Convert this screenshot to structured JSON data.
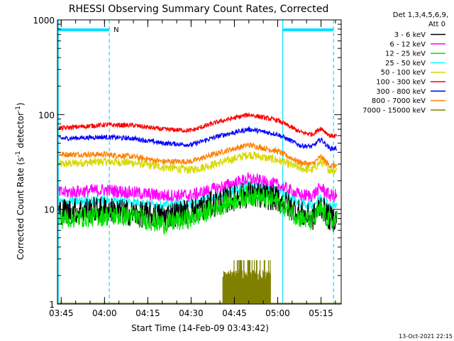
{
  "chart_data": {
    "type": "line",
    "title": "RHESSI Observing Summary Count Rates, Corrected",
    "xlabel": "Start Time (14-Feb-09 03:43:42)",
    "ylabel_main": "Corrected Count Rate (s",
    "ylabel_sup1": "-1",
    "ylabel_mid": " detector",
    "ylabel_sup2": "-1",
    "ylabel_end": ")",
    "yscale": "log",
    "ylim": [
      1,
      1000
    ],
    "xlim": [
      "03:43:42",
      "05:22:00"
    ],
    "y_ticks": [
      1,
      10,
      100,
      1000
    ],
    "y_tick_labels": [
      "1",
      "10",
      "100",
      "1000"
    ],
    "x_ticks": [
      "03:45",
      "04:00",
      "04:15",
      "04:30",
      "04:45",
      "05:00",
      "05:15"
    ],
    "legend_position": "right",
    "legend_header": [
      "Det 1,3,4,5,6,9,",
      "Att 0"
    ],
    "footer_date": "13-Oct-2021 22:15",
    "night_marker_label": "N",
    "night_intervals": [
      [
        "03:44:00",
        "04:01:40"
      ],
      [
        "05:01:45",
        "05:19:20"
      ]
    ],
    "series": [
      {
        "name": "3 - 6 keV",
        "color": "#000000",
        "points": [
          [
            "03:45",
            9.5
          ],
          [
            "04:00",
            10
          ],
          [
            "04:10",
            9
          ],
          [
            "04:20",
            8.5
          ],
          [
            "04:30",
            9.5
          ],
          [
            "04:40",
            12
          ],
          [
            "04:50",
            14.5
          ],
          [
            "05:00",
            13
          ],
          [
            "05:08",
            9
          ],
          [
            "05:12",
            8
          ],
          [
            "05:15",
            11
          ],
          [
            "05:18",
            8
          ],
          [
            "05:21",
            8
          ]
        ]
      },
      {
        "name": "6 - 12 keV",
        "color": "#ff00ff",
        "points": [
          [
            "03:45",
            15
          ],
          [
            "04:00",
            16
          ],
          [
            "04:10",
            15
          ],
          [
            "04:20",
            14
          ],
          [
            "04:30",
            14
          ],
          [
            "04:40",
            17
          ],
          [
            "04:50",
            21
          ],
          [
            "05:00",
            18
          ],
          [
            "05:08",
            14
          ],
          [
            "05:12",
            14
          ],
          [
            "05:15",
            17
          ],
          [
            "05:18",
            14
          ],
          [
            "05:21",
            14
          ]
        ]
      },
      {
        "name": "12 - 25 keV",
        "color": "#00e000",
        "points": [
          [
            "03:45",
            8
          ],
          [
            "04:00",
            8.5
          ],
          [
            "04:10",
            8.5
          ],
          [
            "04:20",
            7
          ],
          [
            "04:30",
            8
          ],
          [
            "04:40",
            11
          ],
          [
            "04:50",
            14
          ],
          [
            "05:00",
            12
          ],
          [
            "05:08",
            8
          ],
          [
            "05:12",
            7.5
          ],
          [
            "05:15",
            10
          ],
          [
            "05:18",
            7.5
          ],
          [
            "05:21",
            7.5
          ]
        ]
      },
      {
        "name": "25 - 50 keV",
        "color": "#00ffff",
        "points": [
          [
            "03:45",
            12
          ],
          [
            "04:00",
            12.5
          ],
          [
            "04:10",
            12
          ],
          [
            "04:20",
            11
          ],
          [
            "04:30",
            11.5
          ],
          [
            "04:40",
            14
          ],
          [
            "04:50",
            18
          ],
          [
            "05:00",
            15.5
          ],
          [
            "05:08",
            11.5
          ],
          [
            "05:12",
            11
          ],
          [
            "05:15",
            13.5
          ],
          [
            "05:18",
            11
          ],
          [
            "05:21",
            11
          ]
        ]
      },
      {
        "name": "50 - 100 keV",
        "color": "#d8d800",
        "points": [
          [
            "03:45",
            30
          ],
          [
            "04:00",
            32
          ],
          [
            "04:10",
            31
          ],
          [
            "04:20",
            28
          ],
          [
            "04:30",
            26
          ],
          [
            "04:40",
            31
          ],
          [
            "04:50",
            38
          ],
          [
            "05:00",
            33
          ],
          [
            "05:08",
            27
          ],
          [
            "05:12",
            26
          ],
          [
            "05:15",
            32
          ],
          [
            "05:18",
            26
          ],
          [
            "05:21",
            26
          ]
        ]
      },
      {
        "name": "100 - 300 keV",
        "color": "#ff0000",
        "points": [
          [
            "03:45",
            72
          ],
          [
            "04:00",
            78
          ],
          [
            "04:10",
            77
          ],
          [
            "04:20",
            70
          ],
          [
            "04:30",
            68
          ],
          [
            "04:40",
            85
          ],
          [
            "04:50",
            100
          ],
          [
            "05:00",
            87
          ],
          [
            "05:08",
            65
          ],
          [
            "05:12",
            62
          ],
          [
            "05:15",
            72
          ],
          [
            "05:18",
            60
          ],
          [
            "05:21",
            59
          ]
        ]
      },
      {
        "name": "300 - 800 keV",
        "color": "#0000ff",
        "points": [
          [
            "03:45",
            56
          ],
          [
            "04:00",
            58
          ],
          [
            "04:10",
            56
          ],
          [
            "04:20",
            50
          ],
          [
            "04:30",
            48
          ],
          [
            "04:40",
            60
          ],
          [
            "04:50",
            70
          ],
          [
            "05:00",
            62
          ],
          [
            "05:08",
            47
          ],
          [
            "05:12",
            46
          ],
          [
            "05:15",
            55
          ],
          [
            "05:18",
            44
          ],
          [
            "05:21",
            44
          ]
        ]
      },
      {
        "name": "800 - 7000 keV",
        "color": "#ff8000",
        "points": [
          [
            "03:45",
            38
          ],
          [
            "04:00",
            38
          ],
          [
            "04:10",
            36
          ],
          [
            "04:20",
            32
          ],
          [
            "04:30",
            32
          ],
          [
            "04:40",
            40
          ],
          [
            "04:50",
            48
          ],
          [
            "05:00",
            41
          ],
          [
            "05:08",
            31
          ],
          [
            "05:12",
            30
          ],
          [
            "05:15",
            36
          ],
          [
            "05:18",
            29
          ],
          [
            "05:21",
            29
          ]
        ]
      },
      {
        "name": "7000 - 15000 keV",
        "color": "#808000",
        "points": []
      }
    ],
    "spike_series": {
      "name": "7000 - 15000 keV",
      "color": "#808000",
      "start": "04:41:00",
      "end": "04:57:30",
      "level": 2,
      "peak": 2.9
    }
  }
}
